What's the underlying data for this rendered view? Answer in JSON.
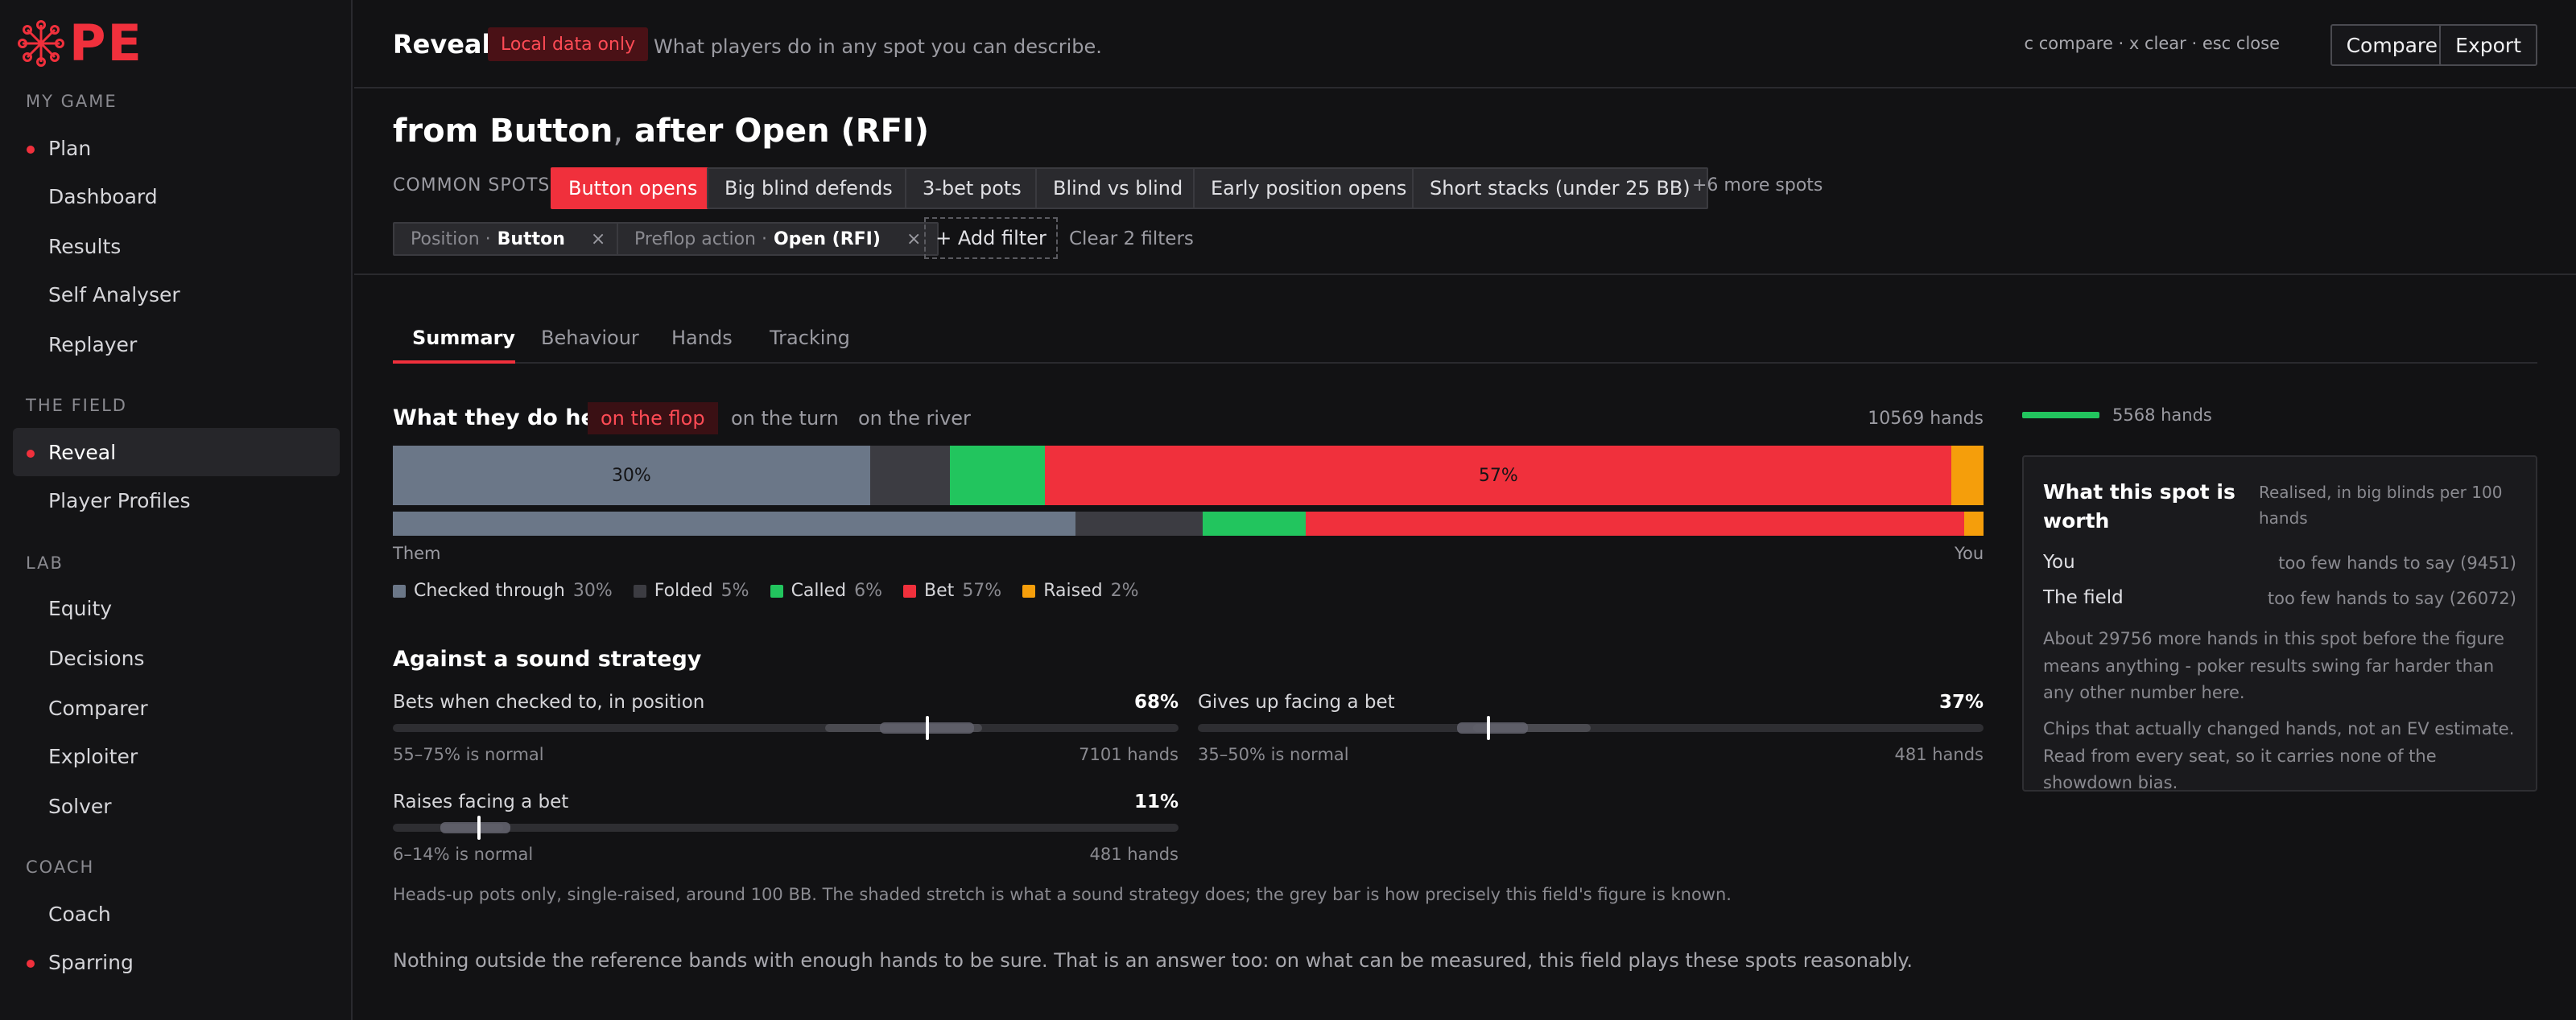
{
  "brand": {
    "logo_text": "PE",
    "accent": "#f0303c"
  },
  "sidebar": {
    "sections": [
      {
        "label": "MY GAME"
      },
      {
        "label": "THE FIELD"
      },
      {
        "label": "LAB"
      },
      {
        "label": "COACH"
      }
    ],
    "items": [
      {
        "label": "Plan",
        "dot": true
      },
      {
        "label": "Dashboard"
      },
      {
        "label": "Results"
      },
      {
        "label": "Self Analyser"
      },
      {
        "label": "Replayer"
      },
      {
        "label": "Reveal",
        "dot": true,
        "active": true
      },
      {
        "label": "Player Profiles"
      },
      {
        "label": "Equity"
      },
      {
        "label": "Decisions"
      },
      {
        "label": "Comparer"
      },
      {
        "label": "Exploiter"
      },
      {
        "label": "Solver"
      },
      {
        "label": "Coach"
      },
      {
        "label": "Sparring",
        "dot": true
      }
    ]
  },
  "header": {
    "title": "Reveal",
    "badge": "Local data only",
    "subtitle": "What players do in any spot you can describe.",
    "shortcuts": "c compare · x clear · esc close",
    "compare_label": "Compare",
    "export_label": "Export"
  },
  "query": {
    "title_a": "from Button",
    "title_sep": ",",
    "title_b": " after Open (RFI)",
    "common_label": "COMMON SPOTS",
    "spots": [
      "Button opens",
      "Big blind defends",
      "3-bet pots",
      "Blind vs blind",
      "Early position opens",
      "Short stacks (under 25 BB)"
    ],
    "more_spots": "+6 more spots",
    "filters": [
      {
        "key": "Position · ",
        "value": "Button",
        "remove": "×"
      },
      {
        "key": "Preflop action · ",
        "value": "Open (RFI)",
        "remove": "×"
      }
    ],
    "add_filter": "+ Add filter",
    "clear_filters": "Clear 2 filters"
  },
  "tabs": [
    "Summary",
    "Behaviour",
    "Hands",
    "Tracking"
  ],
  "summary": {
    "title": "What they do here",
    "streets": [
      "on the flop",
      "on the turn",
      "on the river"
    ],
    "hands": "10569 hands",
    "them_label": "Them",
    "you_label": "You",
    "them_label_30": "30%",
    "them_label_57": "57%",
    "legend": [
      {
        "label": "Checked through",
        "pct": "30%",
        "color": "#6b7788"
      },
      {
        "label": "Folded",
        "pct": "5%",
        "color": "#3c3c42"
      },
      {
        "label": "Called",
        "pct": "6%",
        "color": "#22c55e"
      },
      {
        "label": "Bet",
        "pct": "57%",
        "color": "#f0303c"
      },
      {
        "label": "Raised",
        "pct": "2%",
        "color": "#f59e0b"
      }
    ],
    "them_shares": [
      30,
      5,
      6,
      57,
      2
    ],
    "you_shares": [
      43,
      8,
      6.5,
      41.5,
      1.2
    ]
  },
  "strategy": {
    "title": "Against a sound strategy",
    "metrics": [
      {
        "label": "Bets when checked to, in position",
        "value": "68%",
        "range": "55–75% is normal",
        "hands": "7101 hands",
        "band": [
          0.55,
          0.75
        ],
        "ci": [
          0.62,
          0.74
        ],
        "marker": 0.68
      },
      {
        "label": "Gives up facing a bet",
        "value": "37%",
        "range": "35–50% is normal",
        "hands": "481 hands",
        "band": [
          0.35,
          0.5
        ],
        "ci": [
          0.33,
          0.42
        ],
        "marker": 0.37
      },
      {
        "label": "Raises facing a bet",
        "value": "11%",
        "range": "6–14% is normal",
        "hands": "481 hands",
        "band": [
          0.06,
          0.14
        ],
        "ci": [
          0.06,
          0.15
        ],
        "marker": 0.11
      }
    ],
    "footnote": "Heads-up pots only, single-raised, around 100 BB. The shaded stretch is what a sound strategy does; the grey bar is how precisely this field's figure is known.",
    "conclusion": "Nothing outside the reference bands with enough hands to be sure. That is an answer too: on what can be measured, this field plays these spots reasonably."
  },
  "worth": {
    "legend_hands": "5568 hands",
    "title": "What this spot is worth",
    "subtitle": "Realised, in big blinds per 100 hands",
    "you_label": "You",
    "you_val": "too few hands to say (9451)",
    "field_label": "The field",
    "field_val": "too few hands to say (26072)",
    "para1": "About 29756 more hands in this spot before the figure means anything - poker results swing far harder than any other number here.",
    "para2": "Chips that actually changed hands, not an EV estimate. Read from every seat, so it carries none of the showdown bias."
  }
}
